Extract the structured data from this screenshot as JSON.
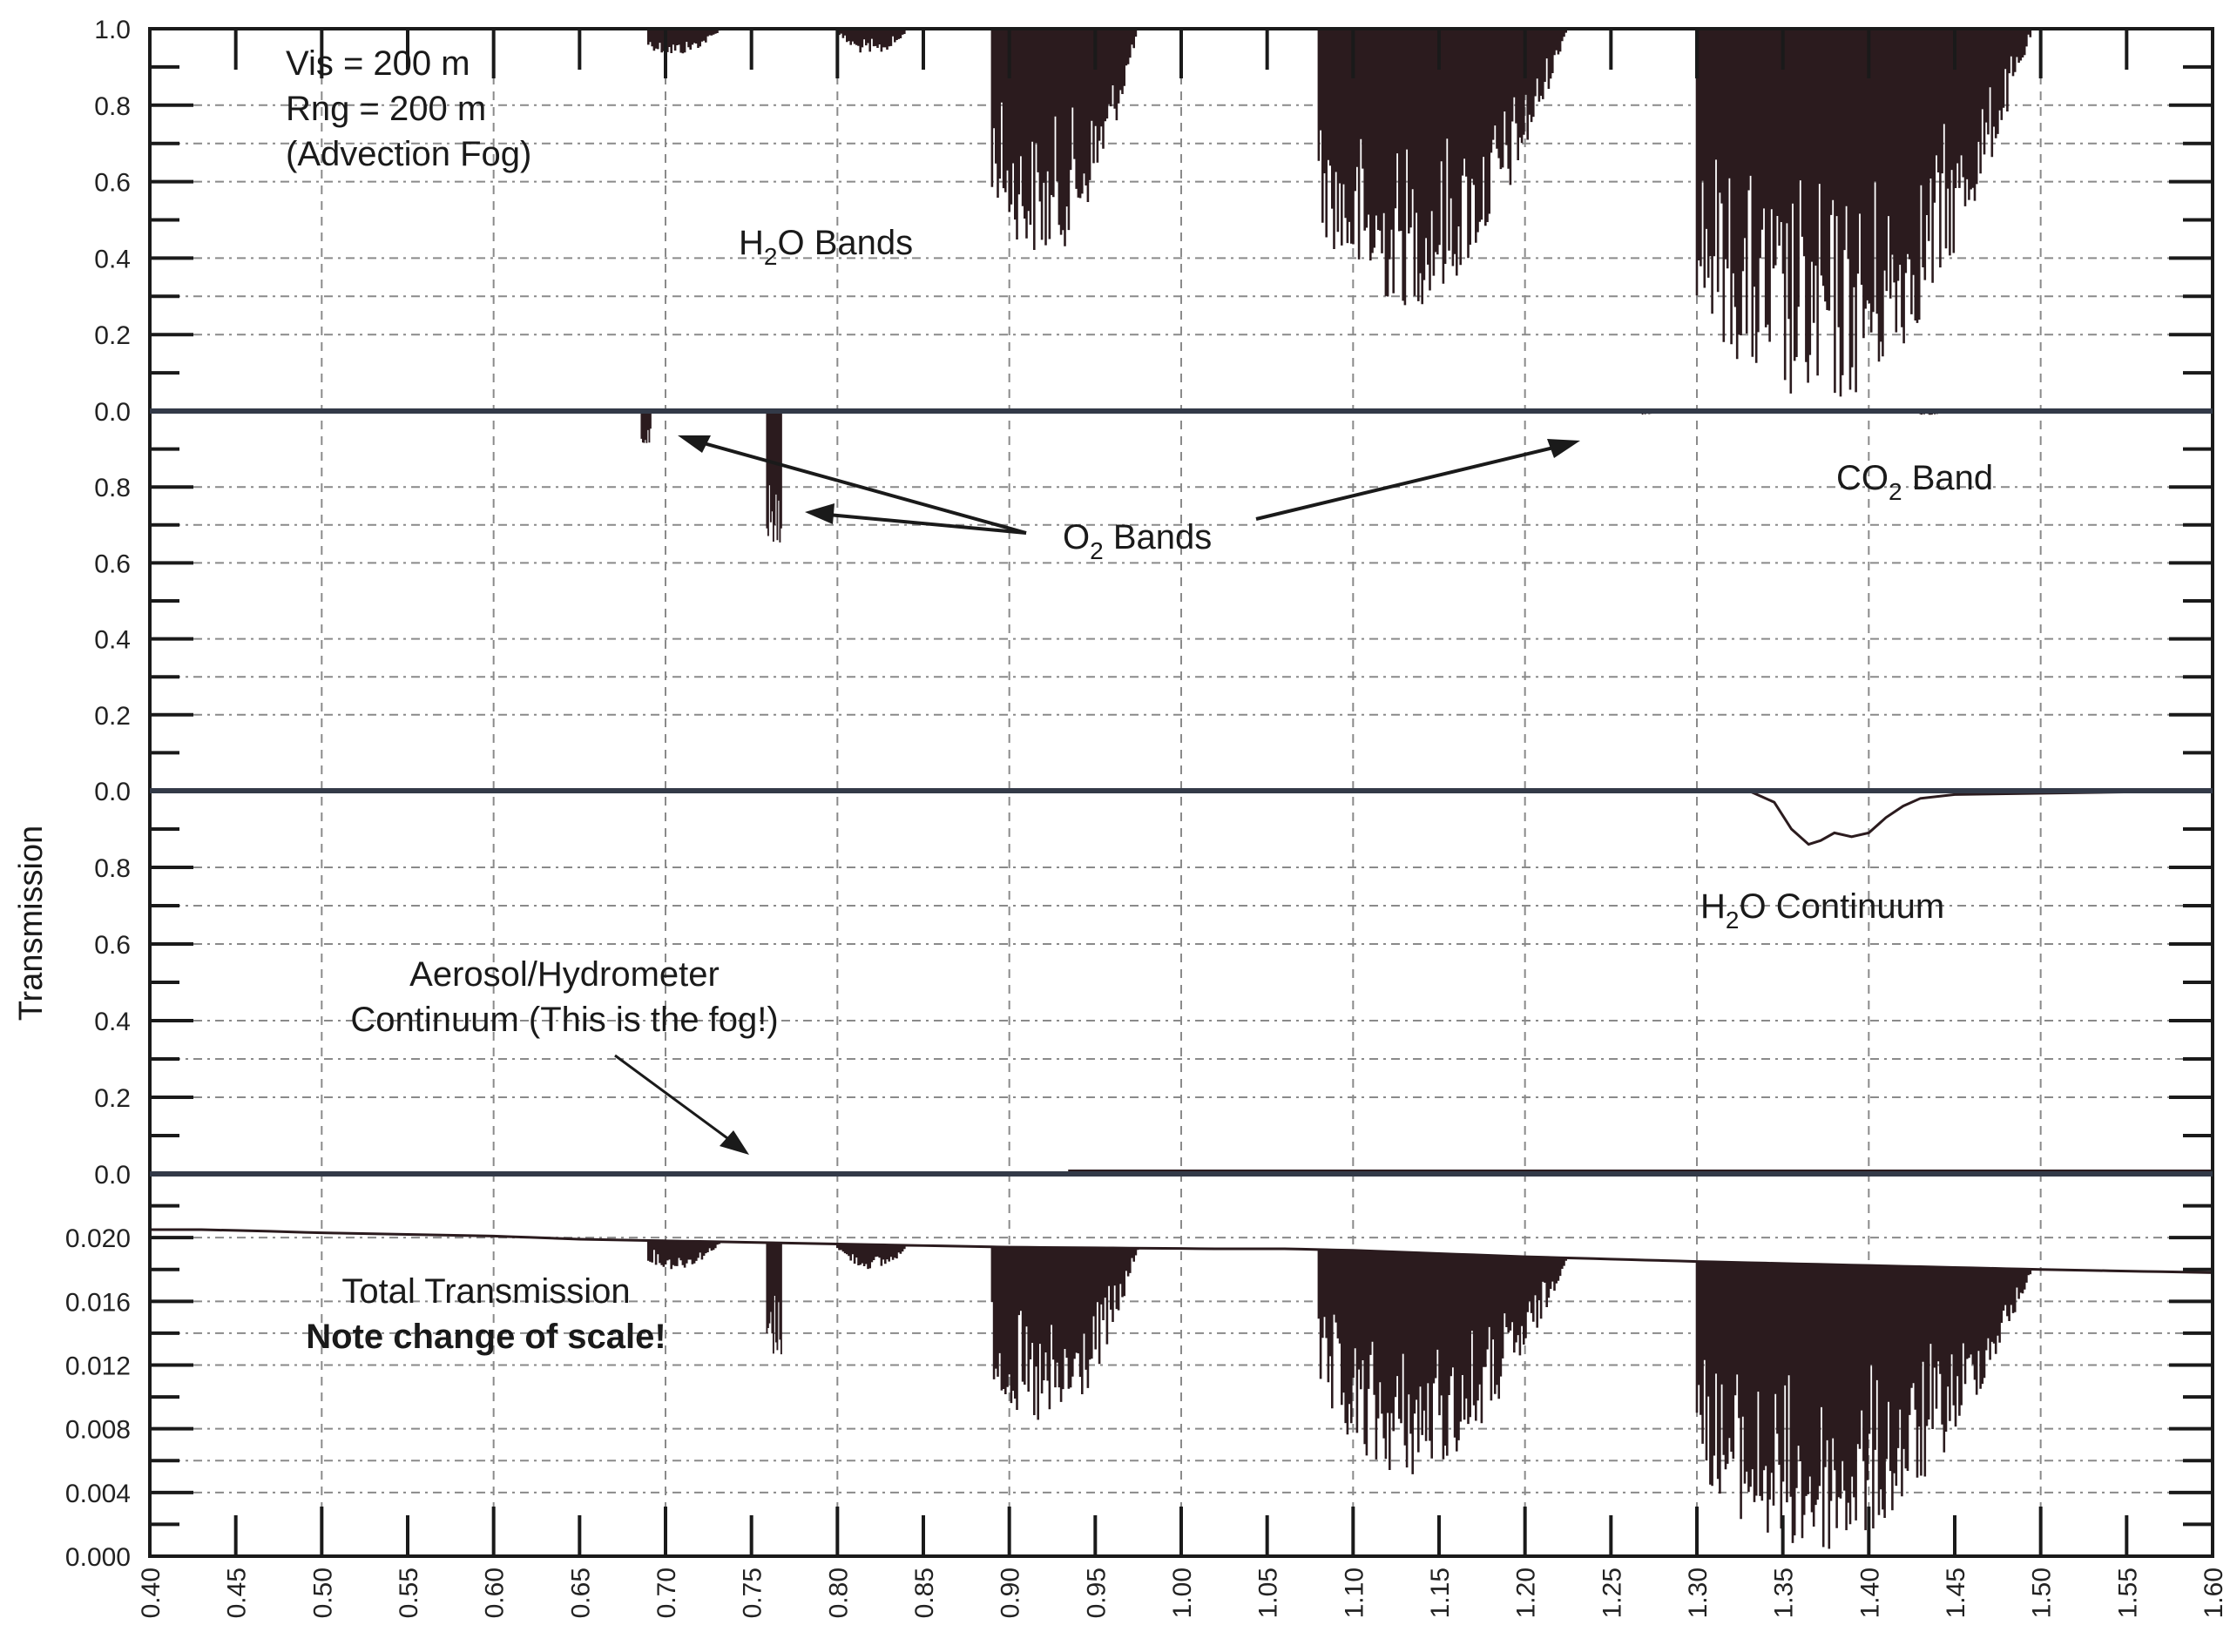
{
  "chart_data": {
    "type": "area",
    "title": "",
    "xlabel": "",
    "ylabel": "Transmission",
    "xlim": [
      0.4,
      1.6
    ],
    "x_ticks": [
      "0.40",
      "0.45",
      "0.50",
      "0.55",
      "0.60",
      "0.65",
      "0.70",
      "0.75",
      "0.80",
      "0.85",
      "0.90",
      "0.95",
      "1.00",
      "1.05",
      "1.10",
      "1.15",
      "1.20",
      "1.25",
      "1.30",
      "1.35",
      "1.40",
      "1.45",
      "1.50",
      "1.55",
      "1.60"
    ],
    "grid": true,
    "panels": [
      {
        "id": "h2o-bands",
        "ylim": [
          0.0,
          1.0
        ],
        "y_ticks": [
          "1.0",
          "0.8",
          "0.6",
          "0.4",
          "0.2",
          "0.0"
        ],
        "annotations": [
          "Vis = 200 m",
          "Rng = 200 m",
          "(Advection Fog)",
          "H2O Bands"
        ],
        "series": [
          {
            "name": "H2O Bands transmission",
            "baseline": 1.0,
            "absorption_features": [
              {
                "x_start": 0.69,
                "x_end": 0.74,
                "min": 0.93
              },
              {
                "x_start": 0.8,
                "x_end": 0.84,
                "min": 0.93
              },
              {
                "x_start": 0.89,
                "x_end": 0.99,
                "min": 0.4
              },
              {
                "x_start": 1.08,
                "x_end": 1.25,
                "min": 0.27
              },
              {
                "x_start": 1.3,
                "x_end": 1.53,
                "min": 0.0
              }
            ]
          }
        ]
      },
      {
        "id": "o2-co2-bands",
        "ylim": [
          0.0,
          1.0
        ],
        "y_ticks": [
          "0.8",
          "0.6",
          "0.4",
          "0.2",
          "0.0"
        ],
        "annotations": [
          "O2 Bands",
          "CO2 Band"
        ],
        "series": [
          {
            "name": "O2/CO2 transmission",
            "baseline": 1.0,
            "absorption_features": [
              {
                "x_start": 0.686,
                "x_end": 0.692,
                "min": 0.91
              },
              {
                "x_start": 0.759,
                "x_end": 0.768,
                "min": 0.64
              },
              {
                "x_start": 1.26,
                "x_end": 1.28,
                "min": 0.99
              },
              {
                "x_start": 1.43,
                "x_end": 1.44,
                "min": 0.99
              }
            ]
          }
        ]
      },
      {
        "id": "h2o-aerosol-continuum",
        "ylim": [
          0.0,
          1.0
        ],
        "y_ticks": [
          "0.8",
          "0.6",
          "0.4",
          "0.2",
          "0.0"
        ],
        "annotations": [
          "H2O Continuum",
          "Aerosol/Hydrometer",
          "Continuum (This is the fog!)"
        ],
        "series": [
          {
            "name": "H2O Continuum",
            "x": [
              0.4,
              1.33,
              1.345,
              1.355,
              1.365,
              1.372,
              1.38,
              1.39,
              1.4,
              1.41,
              1.42,
              1.43,
              1.45,
              1.6
            ],
            "y": [
              1.0,
              1.0,
              0.97,
              0.9,
              0.86,
              0.87,
              0.89,
              0.88,
              0.89,
              0.93,
              0.96,
              0.98,
              0.99,
              1.0
            ]
          },
          {
            "name": "Aerosol/Hydrometer Continuum",
            "x": [
              0.4,
              0.935,
              0.935,
              1.6
            ],
            "y": [
              0.0,
              0.0,
              0.008,
              0.008
            ]
          }
        ]
      },
      {
        "id": "total-transmission",
        "ylim": [
          0.0,
          0.024
        ],
        "y_ticks": [
          "0.020",
          "0.016",
          "0.012",
          "0.008",
          "0.004",
          "0.000"
        ],
        "annotations": [
          "Total Transmission",
          "Note change of scale!"
        ],
        "series": [
          {
            "name": "Total Transmission",
            "baseline_points": {
              "x": [
                0.4,
                0.43,
                0.47,
                0.5,
                0.55,
                0.6,
                0.65,
                0.7,
                0.8,
                0.9,
                1.02,
                1.06,
                1.1,
                1.2,
                1.3,
                1.5,
                1.6
              ],
              "y": [
                0.0205,
                0.0205,
                0.0204,
                0.0203,
                0.0202,
                0.0201,
                0.0199,
                0.0198,
                0.0196,
                0.0194,
                0.0193,
                0.0193,
                0.0192,
                0.0188,
                0.0185,
                0.018,
                0.0178
              ]
            },
            "absorption_features": [
              {
                "x_start": 0.69,
                "x_end": 0.74,
                "min": 0.018
              },
              {
                "x_start": 0.759,
                "x_end": 0.768,
                "min": 0.0125
              },
              {
                "x_start": 0.8,
                "x_end": 0.84,
                "min": 0.018
              },
              {
                "x_start": 0.89,
                "x_end": 0.99,
                "min": 0.0078
              },
              {
                "x_start": 1.08,
                "x_end": 1.25,
                "min": 0.005
              },
              {
                "x_start": 1.3,
                "x_end": 1.53,
                "min": 0.0
              }
            ]
          }
        ]
      }
    ]
  },
  "labels": {
    "y_axis_title": "Transmission",
    "vis": "Vis = 200 m",
    "rng": "Rng = 200 m",
    "fog_type": "(Advection Fog)",
    "h2o_bands_main": "H",
    "h2o_bands_sub": "2",
    "h2o_bands_rest": "O Bands",
    "o2_bands_main": "O",
    "o2_bands_sub": "2",
    "o2_bands_rest": " Bands",
    "co2_band_main": "CO",
    "co2_band_sub": "2",
    "co2_band_rest": " Band",
    "h2o_cont_main": "H",
    "h2o_cont_sub": "2",
    "h2o_cont_rest": "O Continuum",
    "aerosol_line1": "Aerosol/Hydrometer",
    "aerosol_line2": "Continuum (This is the fog!)",
    "total_line1": "Total Transmission",
    "total_line2": "Note change of scale!"
  },
  "colors": {
    "spectrum": "#2b1b1e",
    "divider": "#333a48",
    "grid": "#8a8a8a",
    "frame": "#1a1a1a"
  }
}
